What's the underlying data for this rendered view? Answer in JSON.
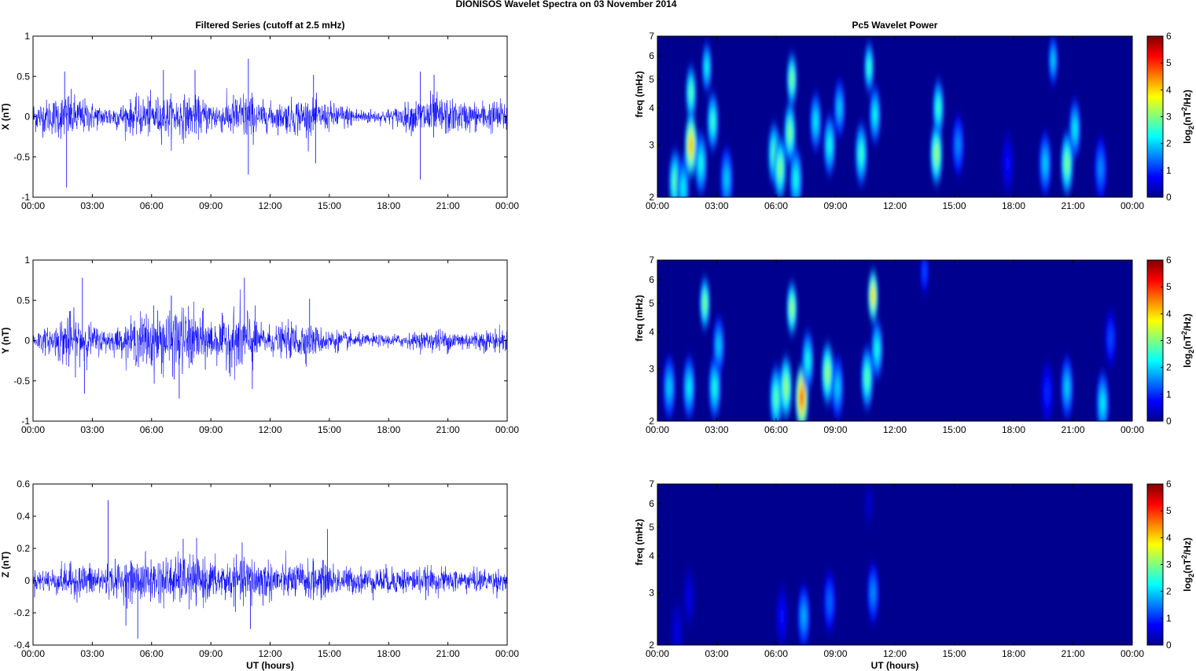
{
  "figure": {
    "title": "DIONISOS Wavelet Spectra on 03 November  2014",
    "left_column_title": "Filtered Series (cutoff at 2.5 mHz)",
    "right_column_title": "Pc5 Wavelet Power",
    "xlabel": "UT (hours)"
  },
  "chart_data": [
    {
      "type": "line",
      "component": "X",
      "title": "Filtered Series (cutoff at 2.5 mHz)",
      "ylabel": "X (nT)",
      "xlabel": "",
      "x_ticks": [
        "00:00",
        "03:00",
        "06:00",
        "09:00",
        "12:00",
        "15:00",
        "18:00",
        "21:00",
        "00:00"
      ],
      "xlim_hours": [
        0,
        24
      ],
      "ylim": [
        -1,
        1
      ],
      "y_ticks": [
        "-1",
        "-0.5",
        "0",
        "0.5",
        "1"
      ],
      "y_tick_values": [
        -1,
        -0.5,
        0,
        0.5,
        1
      ],
      "color": "#0000ff",
      "activity_envelope": {
        "hours": [
          0,
          1,
          1.7,
          2.5,
          3.5,
          4.5,
          5.5,
          6.5,
          7.5,
          8.5,
          9.5,
          10.5,
          11,
          11.5,
          12.5,
          13.5,
          14.5,
          15.5,
          16.5,
          17.5,
          18.5,
          19.5,
          20,
          20.5,
          21.5,
          22.5,
          23.5,
          24
        ],
        "amplitude": [
          0.18,
          0.22,
          0.3,
          0.22,
          0.13,
          0.16,
          0.24,
          0.24,
          0.26,
          0.22,
          0.18,
          0.3,
          0.3,
          0.18,
          0.16,
          0.24,
          0.18,
          0.16,
          0.1,
          0.08,
          0.12,
          0.22,
          0.28,
          0.26,
          0.18,
          0.18,
          0.2,
          0.2
        ]
      },
      "spikes": [
        [
          1.7,
          -0.88
        ],
        [
          1.6,
          0.56
        ],
        [
          6.6,
          0.58
        ],
        [
          8.2,
          0.58
        ],
        [
          10.9,
          0.72
        ],
        [
          10.9,
          -0.72
        ],
        [
          14.3,
          -0.58
        ],
        [
          14.2,
          0.52
        ],
        [
          19.6,
          0.56
        ],
        [
          19.6,
          -0.78
        ],
        [
          20.3,
          0.52
        ]
      ]
    },
    {
      "type": "line",
      "component": "Y",
      "title": "",
      "ylabel": "Y (nT)",
      "xlabel": "",
      "x_ticks": [
        "00:00",
        "03:00",
        "06:00",
        "09:00",
        "12:00",
        "15:00",
        "18:00",
        "21:00",
        "00:00"
      ],
      "xlim_hours": [
        0,
        24
      ],
      "ylim": [
        -1,
        1
      ],
      "y_ticks": [
        "-1",
        "-0.5",
        "0",
        "0.5",
        "1"
      ],
      "y_tick_values": [
        -1,
        -0.5,
        0,
        0.5,
        1
      ],
      "color": "#0000ff",
      "activity_envelope": {
        "hours": [
          0,
          1,
          1.7,
          2.5,
          3.5,
          4.5,
          5.5,
          6.5,
          7.5,
          8.5,
          9.5,
          10.5,
          11,
          11.5,
          12.5,
          13.5,
          14.5,
          15.5,
          16.5,
          17.5,
          18.5,
          19.5,
          20,
          20.5,
          21.5,
          22.5,
          23.5,
          24
        ],
        "amplitude": [
          0.12,
          0.16,
          0.36,
          0.26,
          0.14,
          0.16,
          0.34,
          0.38,
          0.42,
          0.32,
          0.24,
          0.44,
          0.4,
          0.18,
          0.18,
          0.24,
          0.16,
          0.12,
          0.08,
          0.07,
          0.08,
          0.1,
          0.12,
          0.14,
          0.12,
          0.12,
          0.14,
          0.14
        ]
      },
      "spikes": [
        [
          2.5,
          0.78
        ],
        [
          2.6,
          -0.66
        ],
        [
          7.0,
          0.56
        ],
        [
          7.4,
          -0.72
        ],
        [
          10.7,
          0.78
        ],
        [
          11.1,
          -0.6
        ],
        [
          14.0,
          0.52
        ]
      ]
    },
    {
      "type": "line",
      "component": "Z",
      "title": "",
      "ylabel": "Z (nT)",
      "xlabel": "UT (hours)",
      "x_ticks": [
        "00:00",
        "03:00",
        "06:00",
        "09:00",
        "12:00",
        "15:00",
        "18:00",
        "21:00",
        "00:00"
      ],
      "xlim_hours": [
        0,
        24
      ],
      "ylim": [
        -0.4,
        0.6
      ],
      "y_ticks": [
        "-0.4",
        "-0.2",
        "0",
        "0.2",
        "0.4",
        "0.6"
      ],
      "y_tick_values": [
        -0.4,
        -0.2,
        0,
        0.2,
        0.4,
        0.6
      ],
      "color": "#0000ff",
      "activity_envelope": {
        "hours": [
          0,
          1,
          2,
          3,
          4,
          5,
          6,
          7,
          8,
          9,
          10,
          11,
          12,
          13,
          14,
          15,
          16,
          17,
          18,
          19,
          20,
          21,
          22,
          23,
          24
        ],
        "amplitude": [
          0.06,
          0.08,
          0.1,
          0.1,
          0.1,
          0.12,
          0.14,
          0.14,
          0.16,
          0.12,
          0.12,
          0.16,
          0.12,
          0.1,
          0.12,
          0.1,
          0.08,
          0.08,
          0.08,
          0.08,
          0.08,
          0.07,
          0.07,
          0.07,
          0.07
        ]
      },
      "spikes": [
        [
          3.8,
          0.5
        ],
        [
          5.3,
          -0.36
        ],
        [
          4.7,
          -0.28
        ],
        [
          11.0,
          -0.3
        ],
        [
          14.9,
          0.32
        ],
        [
          7.6,
          0.26
        ]
      ]
    },
    {
      "type": "heatmap",
      "component": "X",
      "title": "Pc5 Wavelet Power",
      "ylabel": "freq (mHz)",
      "xlabel": "",
      "x_ticks": [
        "00:00",
        "03:00",
        "06:00",
        "09:00",
        "12:00",
        "15:00",
        "18:00",
        "21:00",
        "00:00"
      ],
      "xlim_hours": [
        0,
        24
      ],
      "y_scale": "log",
      "ylim": [
        2,
        7
      ],
      "y_ticks": [
        "2",
        "3",
        "4",
        "5",
        "6",
        "7"
      ],
      "y_tick_values": [
        2,
        3,
        4,
        5,
        6,
        7
      ],
      "colorbar_label": "log2(nT2/Hz)",
      "colorbar_ticks": [
        "0",
        "1",
        "2",
        "3",
        "4",
        "5",
        "6"
      ],
      "clim": [
        0,
        6
      ],
      "colormap": "jet",
      "blobs": [
        {
          "hour": 0.9,
          "freq": 2.25,
          "power": 2.8
        },
        {
          "hour": 1.3,
          "freq": 2.15,
          "power": 2.2
        },
        {
          "hour": 1.7,
          "freq": 3.0,
          "power": 4.2
        },
        {
          "hour": 1.7,
          "freq": 4.5,
          "power": 2.8
        },
        {
          "hour": 2.2,
          "freq": 2.6,
          "power": 2.4
        },
        {
          "hour": 2.5,
          "freq": 5.5,
          "power": 2.3
        },
        {
          "hour": 2.8,
          "freq": 3.6,
          "power": 2.6
        },
        {
          "hour": 3.5,
          "freq": 2.3,
          "power": 2.0
        },
        {
          "hour": 5.9,
          "freq": 2.8,
          "power": 2.8
        },
        {
          "hour": 6.2,
          "freq": 2.5,
          "power": 3.0
        },
        {
          "hour": 6.7,
          "freq": 3.3,
          "power": 3.0
        },
        {
          "hour": 6.8,
          "freq": 5.0,
          "power": 3.0
        },
        {
          "hour": 7.0,
          "freq": 2.3,
          "power": 2.4
        },
        {
          "hour": 8.0,
          "freq": 3.6,
          "power": 2.2
        },
        {
          "hour": 8.7,
          "freq": 3.0,
          "power": 2.4
        },
        {
          "hour": 9.2,
          "freq": 4.0,
          "power": 2.0
        },
        {
          "hour": 10.3,
          "freq": 2.8,
          "power": 2.6
        },
        {
          "hour": 10.7,
          "freq": 5.5,
          "power": 2.6
        },
        {
          "hour": 11.0,
          "freq": 3.8,
          "power": 2.3
        },
        {
          "hour": 14.1,
          "freq": 2.8,
          "power": 3.2
        },
        {
          "hour": 14.2,
          "freq": 4.0,
          "power": 2.6
        },
        {
          "hour": 15.2,
          "freq": 3.0,
          "power": 1.6
        },
        {
          "hour": 17.7,
          "freq": 2.6,
          "power": 0.8
        },
        {
          "hour": 19.6,
          "freq": 2.6,
          "power": 2.0
        },
        {
          "hour": 20.0,
          "freq": 5.8,
          "power": 2.0
        },
        {
          "hour": 20.7,
          "freq": 2.6,
          "power": 3.0
        },
        {
          "hour": 21.1,
          "freq": 3.4,
          "power": 2.2
        },
        {
          "hour": 22.4,
          "freq": 2.5,
          "power": 1.6
        }
      ]
    },
    {
      "type": "heatmap",
      "component": "Y",
      "title": "",
      "ylabel": "freq (mHz)",
      "xlabel": "",
      "x_ticks": [
        "00:00",
        "03:00",
        "06:00",
        "09:00",
        "12:00",
        "15:00",
        "18:00",
        "21:00",
        "00:00"
      ],
      "xlim_hours": [
        0,
        24
      ],
      "y_scale": "log",
      "ylim": [
        2,
        7
      ],
      "y_ticks": [
        "2",
        "3",
        "4",
        "5",
        "6",
        "7"
      ],
      "y_tick_values": [
        2,
        3,
        4,
        5,
        6,
        7
      ],
      "colorbar_label": "log2(nT2/Hz)",
      "colorbar_ticks": [
        "0",
        "1",
        "2",
        "3",
        "4",
        "5",
        "6"
      ],
      "clim": [
        0,
        6
      ],
      "colormap": "jet",
      "blobs": [
        {
          "hour": 0.6,
          "freq": 2.6,
          "power": 2.0
        },
        {
          "hour": 1.6,
          "freq": 2.6,
          "power": 2.2
        },
        {
          "hour": 2.4,
          "freq": 5.0,
          "power": 3.0
        },
        {
          "hour": 2.9,
          "freq": 2.6,
          "power": 2.4
        },
        {
          "hour": 3.1,
          "freq": 3.6,
          "power": 2.0
        },
        {
          "hour": 6.0,
          "freq": 2.4,
          "power": 2.8
        },
        {
          "hour": 6.5,
          "freq": 2.6,
          "power": 3.2
        },
        {
          "hour": 6.8,
          "freq": 4.8,
          "power": 3.2
        },
        {
          "hour": 7.3,
          "freq": 2.4,
          "power": 4.8
        },
        {
          "hour": 7.6,
          "freq": 3.2,
          "power": 2.4
        },
        {
          "hour": 8.6,
          "freq": 2.9,
          "power": 3.2
        },
        {
          "hour": 9.1,
          "freq": 2.6,
          "power": 2.0
        },
        {
          "hour": 10.6,
          "freq": 2.8,
          "power": 2.8
        },
        {
          "hour": 10.9,
          "freq": 5.3,
          "power": 4.0
        },
        {
          "hour": 11.1,
          "freq": 3.5,
          "power": 2.4
        },
        {
          "hour": 13.5,
          "freq": 6.4,
          "power": 1.2
        },
        {
          "hour": 19.7,
          "freq": 2.5,
          "power": 1.0
        },
        {
          "hour": 20.7,
          "freq": 2.6,
          "power": 2.0
        },
        {
          "hour": 22.5,
          "freq": 2.3,
          "power": 2.2
        },
        {
          "hour": 22.9,
          "freq": 3.8,
          "power": 1.2
        }
      ]
    },
    {
      "type": "heatmap",
      "component": "Z",
      "title": "",
      "ylabel": "freq (mHz)",
      "xlabel": "UT (hours)",
      "x_ticks": [
        "00:00",
        "03:00",
        "06:00",
        "09:00",
        "12:00",
        "15:00",
        "18:00",
        "21:00",
        "00:00"
      ],
      "xlim_hours": [
        0,
        24
      ],
      "y_scale": "log",
      "ylim": [
        2,
        7
      ],
      "y_ticks": [
        "2",
        "3",
        "4",
        "5",
        "6",
        "7"
      ],
      "y_tick_values": [
        2,
        3,
        4,
        5,
        6,
        7
      ],
      "colorbar_label": "log2(nT2/Hz)",
      "colorbar_ticks": [
        "0",
        "1",
        "2",
        "3",
        "4",
        "5",
        "6"
      ],
      "clim": [
        0,
        6
      ],
      "colormap": "jet",
      "blobs": [
        {
          "hour": 1.0,
          "freq": 2.2,
          "power": 0.6
        },
        {
          "hour": 1.6,
          "freq": 2.9,
          "power": 0.6
        },
        {
          "hour": 6.3,
          "freq": 2.5,
          "power": 0.8
        },
        {
          "hour": 7.4,
          "freq": 2.5,
          "power": 1.8
        },
        {
          "hour": 8.7,
          "freq": 2.8,
          "power": 1.4
        },
        {
          "hour": 10.9,
          "freq": 3.0,
          "power": 1.6
        },
        {
          "hour": 10.7,
          "freq": 6.0,
          "power": 0.5
        }
      ]
    }
  ]
}
